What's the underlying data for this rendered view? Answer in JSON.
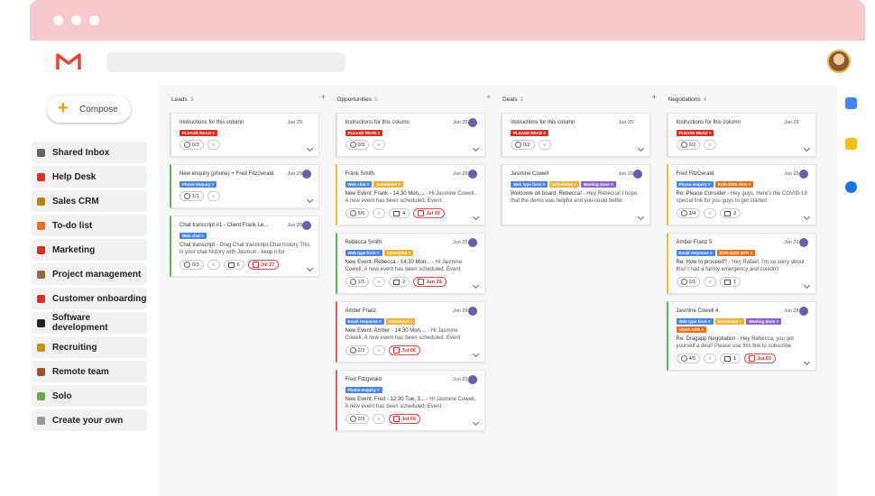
{
  "compose": "Compose",
  "sidebar": [
    "Shared Inbox",
    "Help Desk",
    "Sales CRM",
    "To-do list",
    "Marketing",
    "Project management",
    "Customer onboarding",
    "Software development",
    "Recruiting",
    "Remote team",
    "Solo",
    "Create your own"
  ],
  "columns": [
    {
      "title": "Leads",
      "count": 3,
      "cards": [
        {
          "title": "Instructions for this column",
          "date": "Jun 25",
          "accent": "#ddd",
          "tags": [
            {
              "label": "PLEASE READ",
              "color": "#d93025"
            }
          ],
          "checks": "0/3"
        },
        {
          "title": "New enquiry (phone) + Fred FitzGerald",
          "date": "Jun 29",
          "accent": "#5cb85c",
          "tags": [
            {
              "label": "Phone enquiry",
              "color": "#4a86e8"
            }
          ],
          "checks": "1/1"
        },
        {
          "title": "Chat transcript #1 - Client Frank Le...",
          "date": "Jun 29",
          "accent": "#5cb85c",
          "tags": [
            {
              "label": "Web chat",
              "color": "#4a86e8"
            }
          ],
          "subject": "Chat transcript",
          "snippet": "- Drag Chat transcript Chat history This is your chat history with Jasmun - keep it for",
          "checks": "0/3",
          "comments": "6",
          "due": "Jul 27"
        }
      ]
    },
    {
      "title": "Opportunities",
      "count": 5,
      "cards": [
        {
          "title": "Instructions for this column",
          "date": "Jun 25",
          "accent": "#ddd",
          "tags": [
            {
              "label": "PLEASE READ",
              "color": "#d93025"
            }
          ],
          "checks": "0/3"
        },
        {
          "title": "Frank Smith",
          "date": "Jun 29",
          "accent": "#f1c232",
          "tags": [
            {
              "label": "Web chat",
              "color": "#4a86e8"
            },
            {
              "label": "Scheduled",
              "color": "#f1b232"
            }
          ],
          "subject": "New Event: Frank - 14:30 Mon,...",
          "snippet": "- Hi Jasmine Cowell, A new event has been scheduled. Event",
          "checks": "5/6",
          "comments": "4",
          "due": "Jul 03"
        },
        {
          "title": "Rebecca Smith",
          "date": "Jun 25",
          "accent": "#5cb85c",
          "tags": [
            {
              "label": "Web type form",
              "color": "#4a86e8"
            },
            {
              "label": "Scheduled",
              "color": "#f1b232"
            }
          ],
          "subject": "New Event: Rebecca - 14:30 Mon...",
          "snippet": "- Hi Jasmine Cowell, A new event has been scheduled. Event",
          "checks": "1/1",
          "comments": "2",
          "due": "Jun 29"
        },
        {
          "title": "Amber Franz",
          "date": "Jun 29",
          "accent": "#e06666",
          "tags": [
            {
              "label": "Email response",
              "color": "#4a86e8"
            },
            {
              "label": "Scheduled",
              "color": "#f1b232"
            }
          ],
          "subject": "New Event: Amber - 14:30 Mon,...",
          "snippet": "- Hi Jasmine Cowell, A new event has been scheduled. Event",
          "checks": "2/3",
          "due": "Jul 06"
        },
        {
          "title": "Fred Fitzgerald",
          "date": "Jun 29",
          "accent": "#e06666",
          "tags": [
            {
              "label": "Phone enquiry",
              "color": "#4a86e8"
            }
          ],
          "subject": "New Event: Fred - 12:30 Tue, 3...",
          "snippet": "- Hi Jasmine Cowell, A new event has been scheduled. Event",
          "checks": "2/3",
          "due": "Jul 06"
        }
      ]
    },
    {
      "title": "Deals",
      "count": 2,
      "cards": [
        {
          "title": "Instructions for this column",
          "date": "Jun 25",
          "accent": "#ddd",
          "tags": [
            {
              "label": "PLEASE READ",
              "color": "#d93025"
            }
          ],
          "checks": "0/2"
        },
        {
          "title": "Jasmine Cowell",
          "date": "Jun 29",
          "accent": "#ddd",
          "tags": [
            {
              "label": "Web type form",
              "color": "#4a86e8"
            },
            {
              "label": "Scheduled",
              "color": "#f1b232"
            },
            {
              "label": "Meeting done",
              "color": "#8e63ce"
            }
          ],
          "subject": "Welcome on board, Rebecca!",
          "snippet": "- Hey Rebecca! I hope that the demo was helpful and you could better"
        }
      ]
    },
    {
      "title": "Negotiations",
      "count": 4,
      "cards": [
        {
          "title": "Instructions for this column",
          "date": "Jun 29",
          "accent": "#ddd",
          "tags": [
            {
              "label": "PLEASE READ",
              "color": "#d93025"
            }
          ],
          "checks": "0/2"
        },
        {
          "title": "Fred FitzGerald",
          "date": "Jun 29",
          "accent": "#f1c232",
          "tags": [
            {
              "label": "Phone enquiry",
              "color": "#4a86e8"
            },
            {
              "label": "$100-$200 ARR",
              "color": "#e8711c"
            }
          ],
          "subject": "Re: Please Consider",
          "snippet": "- Hey guys, Here's the COVID-19 special link for you guys to get started",
          "checks": "3/4",
          "comments": "3"
        },
        {
          "title": "Amber Franz 5",
          "date": "Jun 29",
          "accent": "#f1c232",
          "tags": [
            {
              "label": "Email response",
              "color": "#4a86e8"
            },
            {
              "label": "$100-$200 ARR",
              "color": "#e8711c"
            }
          ],
          "subject": "Re: How to proceed?",
          "snippet": "- Hey Rafael, I'm so sorry about this! I had a family emergency and couldn't",
          "checks": "0/1",
          "comments": "1"
        },
        {
          "title": "Jasmine Cowell 4",
          "date": "Jun 28",
          "accent": "#5cb85c",
          "tags": [
            {
              "label": "Web type form",
              "color": "#4a86e8"
            },
            {
              "label": "Scheduled",
              "color": "#f1b232"
            },
            {
              "label": "Meeting done",
              "color": "#8e63ce"
            },
            {
              "label": "<$100 ARR",
              "color": "#e8711c"
            }
          ],
          "subject": "Re: Dragapp Negotiation",
          "snippet": "- Hey Rebecca, you got yourself a deal! Please use this link to subscribe",
          "checks": "4/5",
          "comments": "1",
          "due": "Jul 03"
        }
      ]
    }
  ]
}
